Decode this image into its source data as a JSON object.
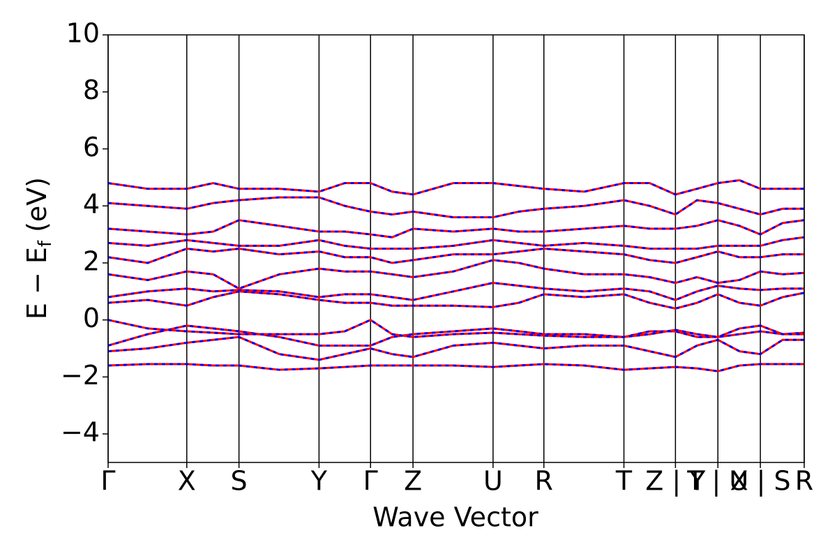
{
  "chart_data": {
    "type": "band-structure",
    "xlabel": "Wave Vector",
    "ylabel": {
      "main": "E − E",
      "subscript": "f",
      "unit": "(eV)"
    },
    "xlim": [
      0,
      1
    ],
    "xticks": [
      {
        "value": 0,
        "label": "Γ"
      },
      {
        "value": 0.113,
        "label": "X"
      },
      {
        "value": 0.188,
        "label": "S"
      },
      {
        "value": 0.303,
        "label": "Y"
      },
      {
        "value": 0.377,
        "label": "Γ"
      },
      {
        "value": 0.438,
        "label": "Z"
      },
      {
        "value": 0.553,
        "label": "U"
      },
      {
        "value": 0.626,
        "label": "R"
      },
      {
        "value": 0.741,
        "label": "T"
      },
      {
        "value": 0.815,
        "label": "Z | Y"
      },
      {
        "value": 0.876,
        "label": "T | U"
      },
      {
        "value": 0.937,
        "label": "X | S"
      },
      {
        "value": 1,
        "label": "R"
      }
    ],
    "ylim": [
      -5,
      10
    ],
    "yticks": [
      {
        "value": -4,
        "label": "−4"
      },
      {
        "value": -2,
        "label": "−2"
      },
      0,
      2,
      4,
      6,
      8,
      10
    ],
    "spins": [
      {
        "color": "#ff0000",
        "dash": "solid"
      },
      {
        "color": "#0000ff",
        "dash": "dashed"
      }
    ],
    "x": [
      0,
      0.057,
      0.113,
      0.151,
      0.188,
      0.246,
      0.303,
      0.34,
      0.377,
      0.408,
      0.438,
      0.496,
      0.553,
      0.59,
      0.626,
      0.684,
      0.741,
      0.778,
      0.815,
      0.846,
      0.876,
      0.907,
      0.937,
      0.969,
      1
    ],
    "bands": [
      [
        -1.6,
        -1.55,
        -1.55,
        -1.6,
        -1.6,
        -1.75,
        -1.7,
        -1.65,
        -1.6,
        -1.6,
        -1.6,
        -1.6,
        -1.65,
        -1.6,
        -1.55,
        -1.6,
        -1.75,
        -1.7,
        -1.65,
        -1.7,
        -1.8,
        -1.6,
        -1.55,
        -1.55,
        -1.55
      ],
      [
        -1.1,
        -1.0,
        -0.8,
        -0.7,
        -0.6,
        -1.2,
        -1.4,
        -1.2,
        -1.0,
        -1.2,
        -1.3,
        -0.9,
        -0.8,
        -0.9,
        -1.0,
        -0.9,
        -0.9,
        -1.1,
        -1.3,
        -0.9,
        -0.7,
        -1.1,
        -1.2,
        -0.7,
        -0.7
      ],
      [
        -0.9,
        -0.5,
        -0.2,
        -0.3,
        -0.4,
        -0.6,
        -0.9,
        -0.9,
        -0.9,
        -0.6,
        -0.5,
        -0.4,
        -0.3,
        -0.4,
        -0.5,
        -0.5,
        -0.6,
        -0.4,
        -0.4,
        -0.6,
        -0.6,
        -0.3,
        -0.2,
        -0.5,
        -0.45
      ],
      [
        0,
        -0.3,
        -0.4,
        -0.45,
        -0.5,
        -0.5,
        -0.5,
        -0.4,
        0,
        -0.5,
        -0.6,
        -0.5,
        -0.45,
        -0.5,
        -0.55,
        -0.6,
        -0.6,
        -0.5,
        -0.35,
        -0.5,
        -0.6,
        -0.5,
        -0.4,
        -0.5,
        -0.5
      ],
      [
        0.6,
        0.7,
        0.5,
        0.8,
        1.0,
        0.9,
        0.7,
        0.6,
        0.6,
        0.5,
        0.5,
        0.5,
        0.45,
        0.6,
        0.9,
        0.8,
        0.9,
        0.6,
        0.4,
        0.6,
        0.9,
        0.6,
        0.5,
        0.8,
        0.95
      ],
      [
        0.8,
        1.0,
        1.1,
        1.0,
        1.05,
        1.0,
        0.8,
        0.9,
        0.9,
        0.8,
        0.7,
        1.0,
        1.3,
        1.2,
        1.1,
        1.0,
        1.1,
        1.0,
        0.7,
        1.0,
        1.2,
        1.1,
        1.05,
        1.1,
        1.1
      ],
      [
        1.6,
        1.4,
        1.7,
        1.6,
        1.1,
        1.6,
        1.8,
        1.7,
        1.7,
        1.6,
        1.5,
        1.7,
        2.1,
        2.0,
        1.8,
        1.6,
        1.6,
        1.5,
        1.3,
        1.5,
        1.3,
        1.4,
        1.7,
        1.6,
        1.65
      ],
      [
        2.2,
        2.0,
        2.5,
        2.4,
        2.5,
        2.3,
        2.4,
        2.2,
        2.2,
        2.0,
        2.1,
        2.3,
        2.3,
        2.4,
        2.5,
        2.4,
        2.3,
        2.1,
        2.0,
        2.2,
        2.4,
        2.2,
        2.2,
        2.3,
        2.3
      ],
      [
        2.7,
        2.6,
        2.8,
        2.7,
        2.6,
        2.6,
        2.8,
        2.6,
        2.5,
        2.5,
        2.5,
        2.6,
        2.8,
        2.7,
        2.6,
        2.7,
        2.6,
        2.5,
        2.5,
        2.5,
        2.6,
        2.6,
        2.6,
        2.8,
        2.9
      ],
      [
        3.2,
        3.1,
        3.0,
        3.1,
        3.5,
        3.3,
        3.1,
        3.1,
        3.0,
        2.9,
        3.2,
        3.1,
        3.2,
        3.1,
        3.1,
        3.2,
        3.3,
        3.2,
        3.2,
        3.3,
        3.5,
        3.3,
        3.0,
        3.4,
        3.5
      ],
      [
        4.1,
        4.0,
        3.9,
        4.1,
        4.2,
        4.3,
        4.3,
        4.0,
        3.8,
        3.7,
        3.8,
        3.6,
        3.6,
        3.8,
        3.9,
        4.0,
        4.2,
        4.0,
        3.7,
        4.2,
        4.1,
        3.9,
        3.7,
        3.9,
        3.9
      ],
      [
        4.8,
        4.6,
        4.6,
        4.8,
        4.6,
        4.6,
        4.5,
        4.8,
        4.8,
        4.5,
        4.4,
        4.8,
        4.8,
        4.7,
        4.6,
        4.5,
        4.8,
        4.8,
        4.4,
        4.6,
        4.8,
        4.9,
        4.6,
        4.6,
        4.6
      ]
    ]
  }
}
